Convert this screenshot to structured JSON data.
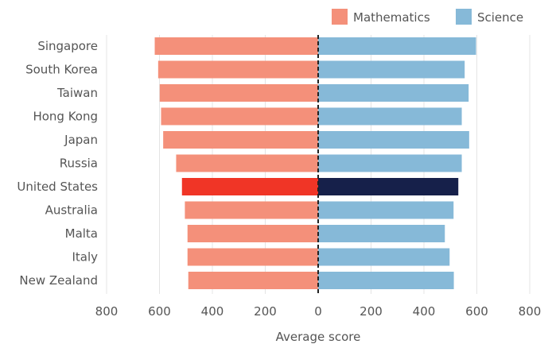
{
  "chart_data": {
    "type": "bar",
    "orientation": "horizontal-diverging",
    "categories": [
      "Singapore",
      "South Korea",
      "Taiwan",
      "Hong Kong",
      "Japan",
      "Russia",
      "United States",
      "Australia",
      "Malta",
      "Italy",
      "New Zealand"
    ],
    "series": [
      {
        "name": "Mathematics",
        "color": "#f4907a",
        "values": [
          618,
          605,
          599,
          594,
          586,
          537,
          515,
          504,
          494,
          494,
          491
        ]
      },
      {
        "name": "Science",
        "color": "#86b9d8",
        "values": [
          597,
          554,
          569,
          543,
          571,
          543,
          530,
          512,
          479,
          497,
          513
        ]
      }
    ],
    "highlight": {
      "category": "United States",
      "colors": {
        "Mathematics": "#f03526",
        "Science": "#16204a"
      }
    },
    "xlabel": "Average score",
    "xlim": [
      -800,
      800
    ],
    "xticks": [
      -800,
      -600,
      -400,
      -200,
      0,
      200,
      400,
      600,
      800
    ],
    "xtick_labels": [
      "800",
      "600",
      "400",
      "200",
      "0",
      "200",
      "400",
      "600",
      "800"
    ],
    "grid": "vertical",
    "legend_position": "top-right",
    "zero_line": "dashed"
  }
}
